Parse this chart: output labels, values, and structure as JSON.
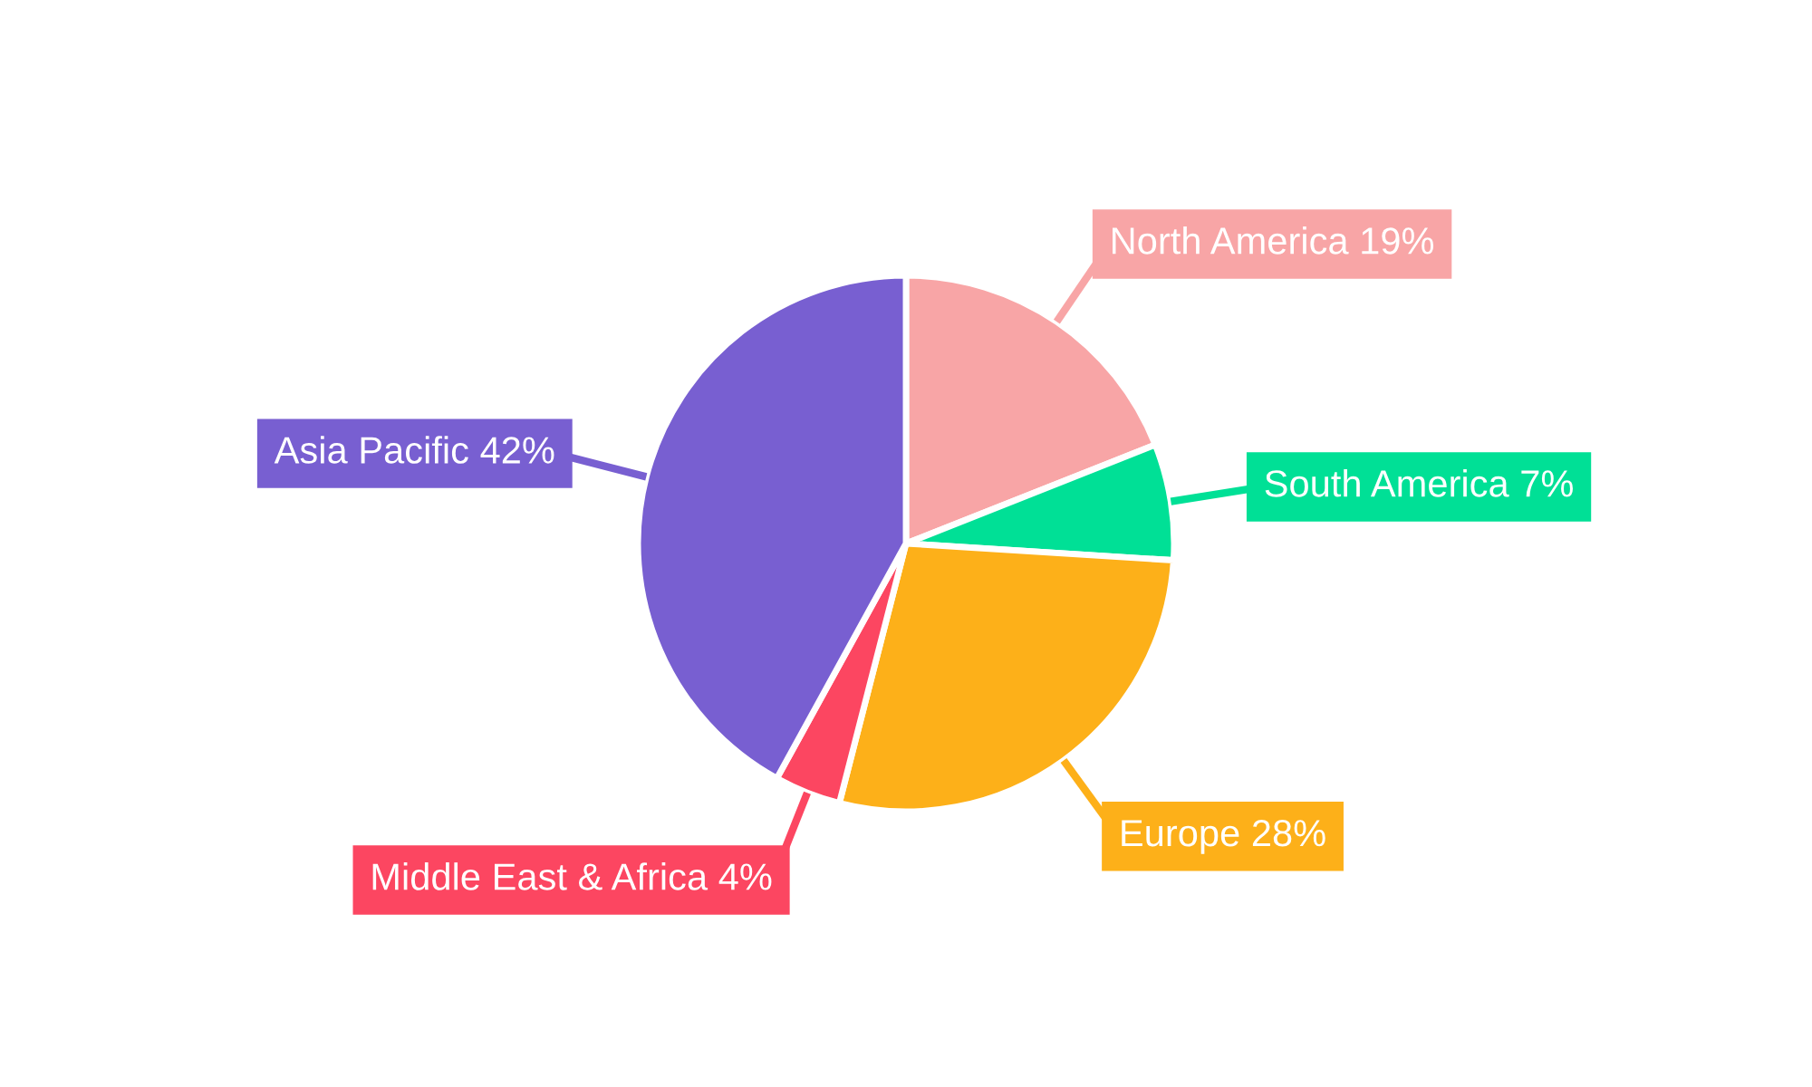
{
  "chart_data": {
    "type": "pie",
    "categories": [
      "North America",
      "South America",
      "Europe",
      "Middle East & Africa",
      "Asia Pacific"
    ],
    "values": [
      19,
      7,
      28,
      4,
      42
    ],
    "value_labels": [
      "19%",
      "7%",
      "28%",
      "4%",
      "42%"
    ],
    "colors": [
      "#f8a5a6",
      "#00e096",
      "#fdb019",
      "#fc4661",
      "#785fd1"
    ],
    "legend": false
  }
}
